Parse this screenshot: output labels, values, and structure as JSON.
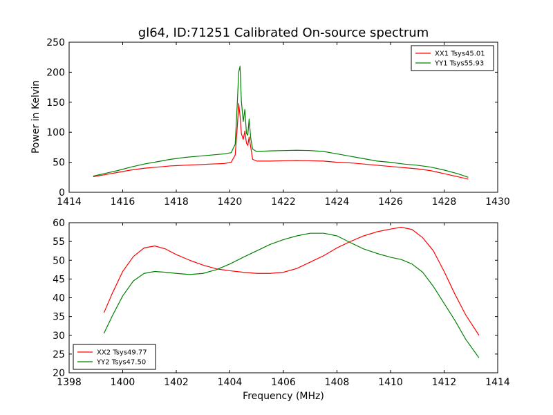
{
  "figure_title": "gl64, ID:71251 Calibrated On-source spectrum",
  "colors": {
    "red": "#ff0000",
    "green": "#008000",
    "axes": "#000000",
    "background": "#ffffff"
  },
  "chart_data": [
    {
      "type": "line",
      "title": "gl64, ID:71251 Calibrated On-source spectrum",
      "xlabel": "",
      "ylabel": "Power in Kelvin",
      "xlim": [
        1414,
        1430
      ],
      "ylim": [
        0,
        250
      ],
      "xticks": [
        1414,
        1416,
        1418,
        1420,
        1422,
        1424,
        1426,
        1428,
        1430
      ],
      "yticks": [
        0,
        50,
        100,
        150,
        200,
        250
      ],
      "grid": false,
      "legend_position": "top-right",
      "series": [
        {
          "name": "XX1 Tsys45.01",
          "color": "#ff0000",
          "x": [
            1414.9,
            1415.3,
            1415.8,
            1416.3,
            1416.8,
            1417.3,
            1417.8,
            1418.3,
            1418.8,
            1419.3,
            1419.8,
            1420.05,
            1420.2,
            1420.28,
            1420.33,
            1420.38,
            1420.43,
            1420.5,
            1420.56,
            1420.62,
            1420.67,
            1420.72,
            1420.78,
            1420.85,
            1421.0,
            1421.5,
            1422.0,
            1422.5,
            1423.0,
            1423.5,
            1424.0,
            1424.5,
            1425.0,
            1425.5,
            1426.0,
            1426.5,
            1427.0,
            1427.5,
            1428.0,
            1428.5,
            1428.9
          ],
          "y": [
            26,
            29,
            33,
            37,
            40,
            42,
            44,
            45,
            46,
            47,
            48,
            50,
            62,
            110,
            148,
            128,
            98,
            88,
            102,
            82,
            78,
            92,
            75,
            55,
            52,
            52,
            52.5,
            53,
            52.5,
            52,
            50,
            49,
            47,
            45,
            43,
            41,
            39,
            36,
            31,
            26,
            22
          ]
        },
        {
          "name": "YY1 Tsys55.93",
          "color": "#008000",
          "x": [
            1414.9,
            1415.3,
            1415.8,
            1416.3,
            1416.8,
            1417.3,
            1417.8,
            1418.3,
            1418.8,
            1419.3,
            1419.8,
            1420.05,
            1420.2,
            1420.28,
            1420.33,
            1420.38,
            1420.43,
            1420.5,
            1420.56,
            1420.62,
            1420.67,
            1420.72,
            1420.78,
            1420.85,
            1421.0,
            1421.5,
            1422.0,
            1422.5,
            1423.0,
            1423.5,
            1424.0,
            1424.5,
            1425.0,
            1425.5,
            1426.0,
            1426.5,
            1427.0,
            1427.5,
            1428.0,
            1428.5,
            1428.9
          ],
          "y": [
            27,
            31,
            36,
            42,
            47,
            51,
            55,
            58,
            60,
            62,
            64,
            66,
            80,
            150,
            200,
            210,
            152,
            118,
            138,
            98,
            95,
            122,
            90,
            72,
            68,
            69,
            69.5,
            70,
            69.5,
            68,
            64,
            60,
            56,
            52,
            50,
            47,
            45,
            42,
            37,
            31,
            25
          ]
        }
      ]
    },
    {
      "type": "line",
      "title": "",
      "xlabel": "Frequency (MHz)",
      "ylabel": "",
      "xlim": [
        1398,
        1414
      ],
      "ylim": [
        20,
        60
      ],
      "xticks": [
        1398,
        1400,
        1402,
        1404,
        1406,
        1408,
        1410,
        1412,
        1414
      ],
      "yticks": [
        20,
        25,
        30,
        35,
        40,
        45,
        50,
        55,
        60
      ],
      "grid": false,
      "legend_position": "bottom-left",
      "series": [
        {
          "name": "XX2 Tsys49.77",
          "color": "#ff0000",
          "x": [
            1399.3,
            1399.6,
            1400.0,
            1400.4,
            1400.8,
            1401.2,
            1401.6,
            1402.0,
            1402.5,
            1403.0,
            1403.5,
            1404.0,
            1404.5,
            1405.0,
            1405.5,
            1406.0,
            1406.5,
            1407.0,
            1407.5,
            1408.0,
            1408.5,
            1409.0,
            1409.5,
            1410.0,
            1410.4,
            1410.8,
            1411.2,
            1411.6,
            1412.0,
            1412.4,
            1412.8,
            1413.3
          ],
          "y": [
            36,
            41,
            47,
            51,
            53.3,
            53.8,
            53,
            51.5,
            50,
            48.7,
            47.7,
            47.2,
            46.8,
            46.5,
            46.5,
            46.8,
            47.8,
            49.5,
            51.2,
            53.3,
            55,
            56.5,
            57.6,
            58.3,
            58.8,
            58.2,
            56,
            52.5,
            47,
            41,
            35.5,
            30
          ]
        },
        {
          "name": "YY2 Tsys47.50",
          "color": "#008000",
          "x": [
            1399.3,
            1399.6,
            1400.0,
            1400.4,
            1400.8,
            1401.2,
            1401.6,
            1402.0,
            1402.5,
            1403.0,
            1403.5,
            1404.0,
            1404.5,
            1405.0,
            1405.5,
            1406.0,
            1406.5,
            1407.0,
            1407.5,
            1408.0,
            1408.5,
            1409.0,
            1409.5,
            1410.0,
            1410.4,
            1410.8,
            1411.2,
            1411.6,
            1412.0,
            1412.4,
            1412.8,
            1413.3
          ],
          "y": [
            30.5,
            35,
            40.5,
            44.5,
            46.5,
            47,
            46.8,
            46.5,
            46.2,
            46.5,
            47.5,
            49,
            50.8,
            52.5,
            54.2,
            55.5,
            56.5,
            57.2,
            57.2,
            56.5,
            54.7,
            53,
            51.8,
            50.8,
            50.2,
            49,
            46.8,
            43,
            38.5,
            34,
            29,
            24
          ]
        }
      ]
    }
  ]
}
